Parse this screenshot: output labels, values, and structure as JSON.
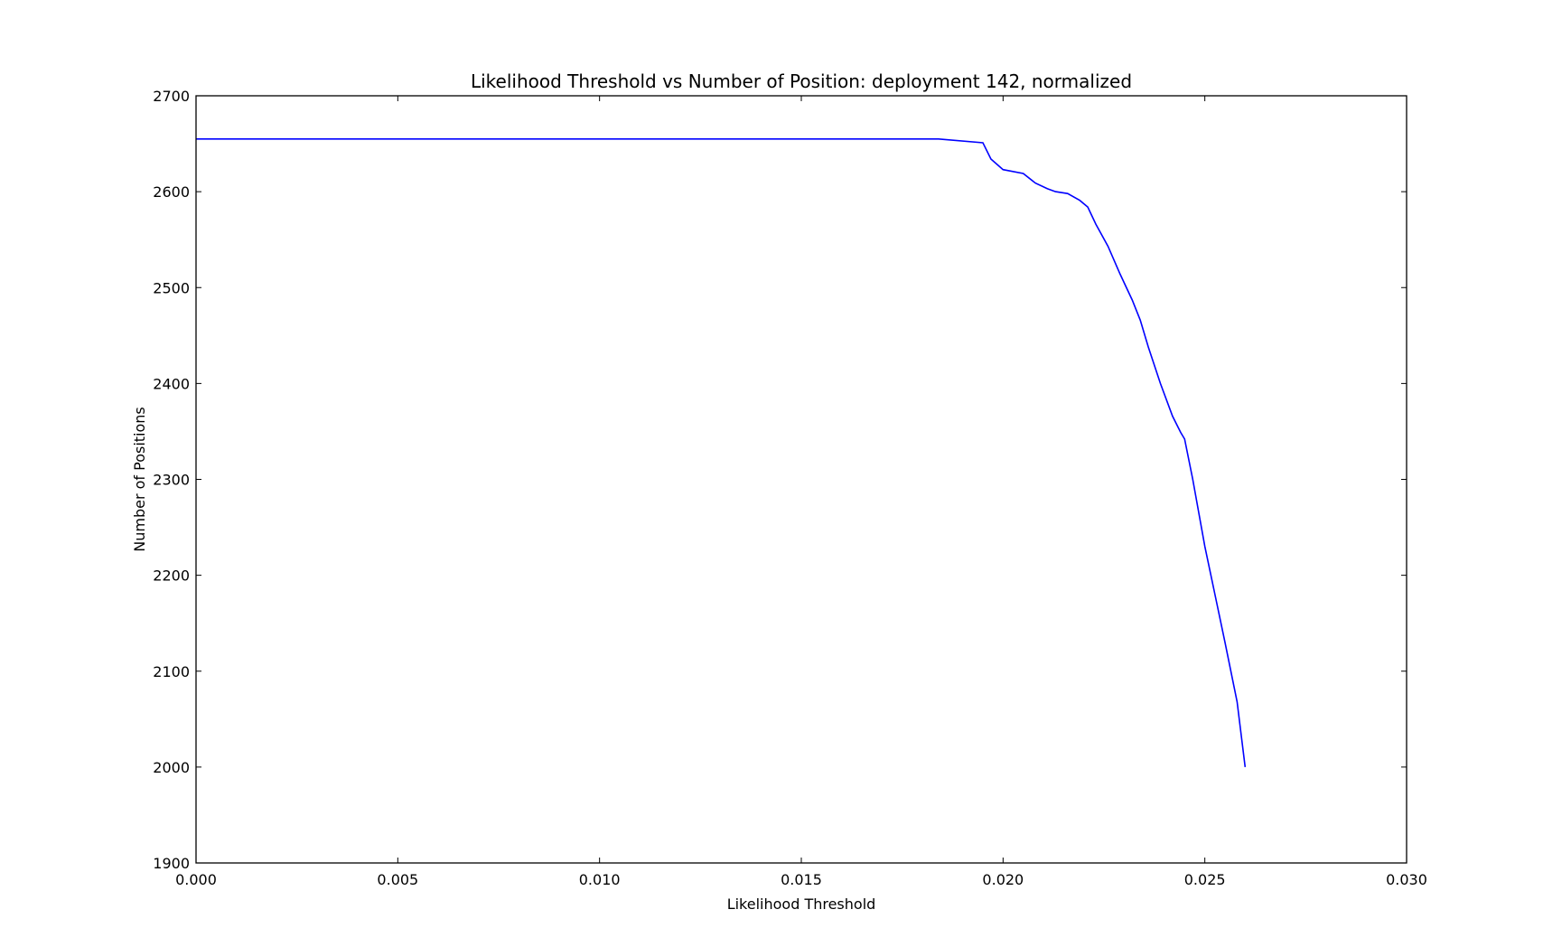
{
  "chart_data": {
    "type": "line",
    "title": "Likelihood Threshold vs Number of Position: deployment 142, normalized",
    "xlabel": "Likelihood Threshold",
    "ylabel": "Number of Positions",
    "xlim": [
      0.0,
      0.03
    ],
    "ylim": [
      1900,
      2700
    ],
    "x_ticks": [
      0.0,
      0.005,
      0.01,
      0.015,
      0.02,
      0.025,
      0.03
    ],
    "x_tick_labels": [
      "0.000",
      "0.005",
      "0.010",
      "0.015",
      "0.020",
      "0.025",
      "0.030"
    ],
    "y_ticks": [
      1900,
      2000,
      2100,
      2200,
      2300,
      2400,
      2500,
      2600,
      2700
    ],
    "y_tick_labels": [
      "1900",
      "2000",
      "2100",
      "2200",
      "2300",
      "2400",
      "2500",
      "2600",
      "2700"
    ],
    "grid": false,
    "series_color": "#0000ff",
    "series": [
      {
        "x": [
          0.0,
          0.0184,
          0.0195,
          0.0197,
          0.02,
          0.0205,
          0.0208,
          0.0211,
          0.0213,
          0.0216,
          0.0219,
          0.0221,
          0.0223,
          0.0226,
          0.0229,
          0.0232,
          0.0234,
          0.0236,
          0.0239,
          0.0242,
          0.0244,
          0.0245,
          0.0247,
          0.025,
          0.0253,
          0.0255,
          0.0258,
          0.026
        ],
        "y": [
          2655,
          2655,
          2651,
          2634,
          2623,
          2619,
          2609,
          2603,
          2600,
          2598,
          2591,
          2584,
          2566,
          2543,
          2514,
          2487,
          2466,
          2438,
          2400,
          2366,
          2349,
          2342,
          2300,
          2230,
          2170,
          2130,
          2068,
          2000
        ]
      }
    ]
  }
}
